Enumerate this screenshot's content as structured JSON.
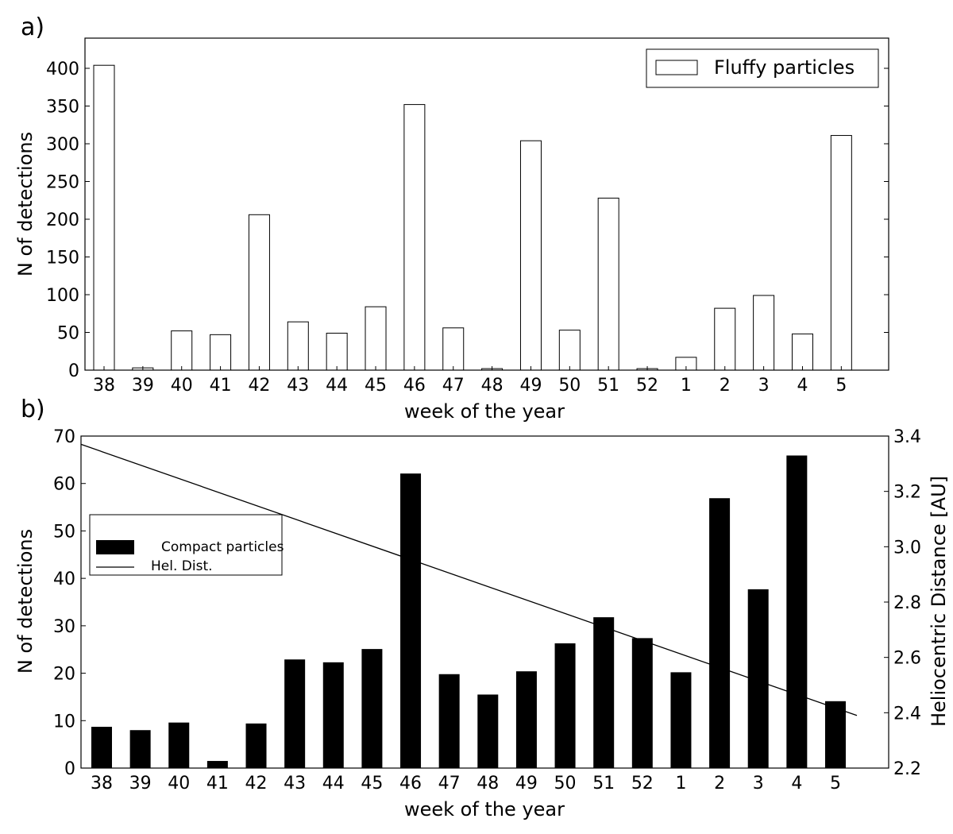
{
  "chart_data": [
    {
      "panel_label": "a)",
      "type": "bar",
      "categories": [
        "38",
        "39",
        "40",
        "41",
        "42",
        "43",
        "44",
        "45",
        "46",
        "47",
        "48",
        "49",
        "50",
        "51",
        "52",
        "1",
        "2",
        "3",
        "4",
        "5"
      ],
      "series": [
        {
          "name": "Fluffy particles",
          "values": [
            404,
            3,
            52,
            47,
            206,
            64,
            49,
            84,
            352,
            56,
            2,
            304,
            53,
            228,
            2,
            17,
            82,
            99,
            48,
            311
          ],
          "fill": "#ffffff",
          "stroke": "#000000"
        }
      ],
      "xlabel": "week of the year",
      "ylabel": "N of detections",
      "ylim": [
        0,
        440
      ],
      "yticks": [
        0,
        50,
        100,
        150,
        200,
        250,
        300,
        350,
        400
      ],
      "legend_position": "top-right",
      "grid": false
    },
    {
      "panel_label": "b)",
      "type": "bar",
      "categories": [
        "38",
        "39",
        "40",
        "41",
        "42",
        "43",
        "44",
        "45",
        "46",
        "47",
        "48",
        "49",
        "50",
        "51",
        "52",
        "1",
        "2",
        "3",
        "4",
        "5"
      ],
      "series": [
        {
          "name": "Compact particles",
          "values": [
            8.7,
            8.0,
            9.6,
            1.5,
            9.4,
            22.9,
            22.3,
            25.1,
            62.1,
            19.8,
            15.5,
            20.4,
            26.3,
            31.8,
            27.4,
            20.2,
            56.9,
            37.7,
            65.9,
            14.1
          ],
          "fill": "#000000"
        },
        {
          "name": "Hel. Dist.",
          "type": "line",
          "axis": "right",
          "x_start": "38",
          "x_end": "after 5",
          "y_start": 3.37,
          "y_end": 2.39,
          "color": "#000000"
        }
      ],
      "xlabel": "week of the year",
      "ylabel": "N of detections",
      "y2label": "Heliocentric Distance [AU]",
      "ylim": [
        0,
        70
      ],
      "yticks": [
        0,
        10,
        20,
        30,
        40,
        50,
        60,
        70
      ],
      "y2lim": [
        2.2,
        3.4
      ],
      "y2ticks": [
        "2.2",
        "2.4",
        "2.6",
        "2.8",
        "3.0",
        "3.2",
        "3.4"
      ],
      "legend_position": "center-left",
      "grid": false
    }
  ]
}
